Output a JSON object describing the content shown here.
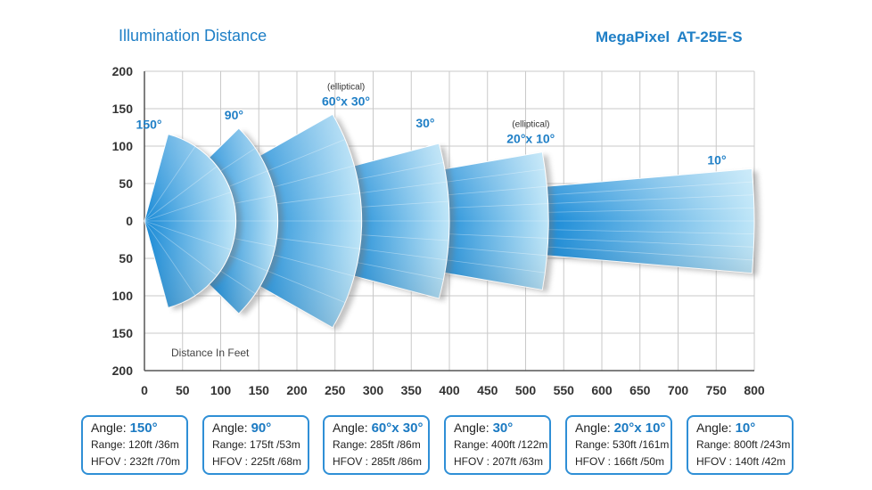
{
  "header": {
    "title": "Illumination Distance",
    "brand": "MegaPixel",
    "model": "AT-25E-S"
  },
  "colors": {
    "accent": "#1f7fc6",
    "beam_dark": "#1a8fd8",
    "beam_light": "#bfe6f8",
    "grid": "#c9c9c9",
    "card_border": "#2f8fd6"
  },
  "chart_data": {
    "type": "beam-diagram",
    "xlabel": "Distance In Feet",
    "xlim": [
      0,
      800
    ],
    "ylim": [
      -200,
      200
    ],
    "x_ticks": [
      "0",
      "50",
      "100",
      "150",
      "200",
      "250",
      "300",
      "350",
      "400",
      "450",
      "500",
      "550",
      "600",
      "650",
      "700",
      "750",
      "800"
    ],
    "y_ticks": [
      "200",
      "150",
      "100",
      "50",
      "0",
      "50",
      "100",
      "150",
      "200"
    ],
    "grid": true,
    "beams": [
      {
        "label": "150°",
        "note": "",
        "angle_deg": 150,
        "range_ft": 120,
        "r_in": 0
      },
      {
        "label": "90°",
        "note": "",
        "angle_deg": 90,
        "range_ft": 175,
        "r_in": 120
      },
      {
        "label": "60°x 30°",
        "note": "(elliptical)",
        "angle_deg": 60,
        "range_ft": 285,
        "r_in": 160
      },
      {
        "label": "30°",
        "note": "",
        "angle_deg": 30,
        "range_ft": 400,
        "r_in": 270
      },
      {
        "label": "20°x 10°",
        "note": "(elliptical)",
        "angle_deg": 20,
        "range_ft": 530,
        "r_in": 385
      },
      {
        "label": "10°",
        "note": "",
        "angle_deg": 10,
        "range_ft": 800,
        "r_in": 525
      }
    ]
  },
  "cards": [
    {
      "angle_label": "Angle:",
      "angle": "150°",
      "range": "Range: 120ft /36m",
      "hfov": "HFOV : 232ft /70m"
    },
    {
      "angle_label": "Angle:",
      "angle": "90°",
      "range": "Range: 175ft /53m",
      "hfov": "HFOV : 225ft /68m"
    },
    {
      "angle_label": "Angle:",
      "angle": "60°x 30°",
      "range": "Range: 285ft /86m",
      "hfov": "HFOV : 285ft /86m"
    },
    {
      "angle_label": "Angle:",
      "angle": "30°",
      "range": "Range: 400ft /122m",
      "hfov": "HFOV : 207ft /63m"
    },
    {
      "angle_label": "Angle:",
      "angle": "20°x 10°",
      "range": "Range: 530ft /161m",
      "hfov": "HFOV :  166ft  /50m"
    },
    {
      "angle_label": "Angle:",
      "angle": "10°",
      "range": "Range: 800ft /243m",
      "hfov": "HFOV : 140ft /42m"
    }
  ]
}
